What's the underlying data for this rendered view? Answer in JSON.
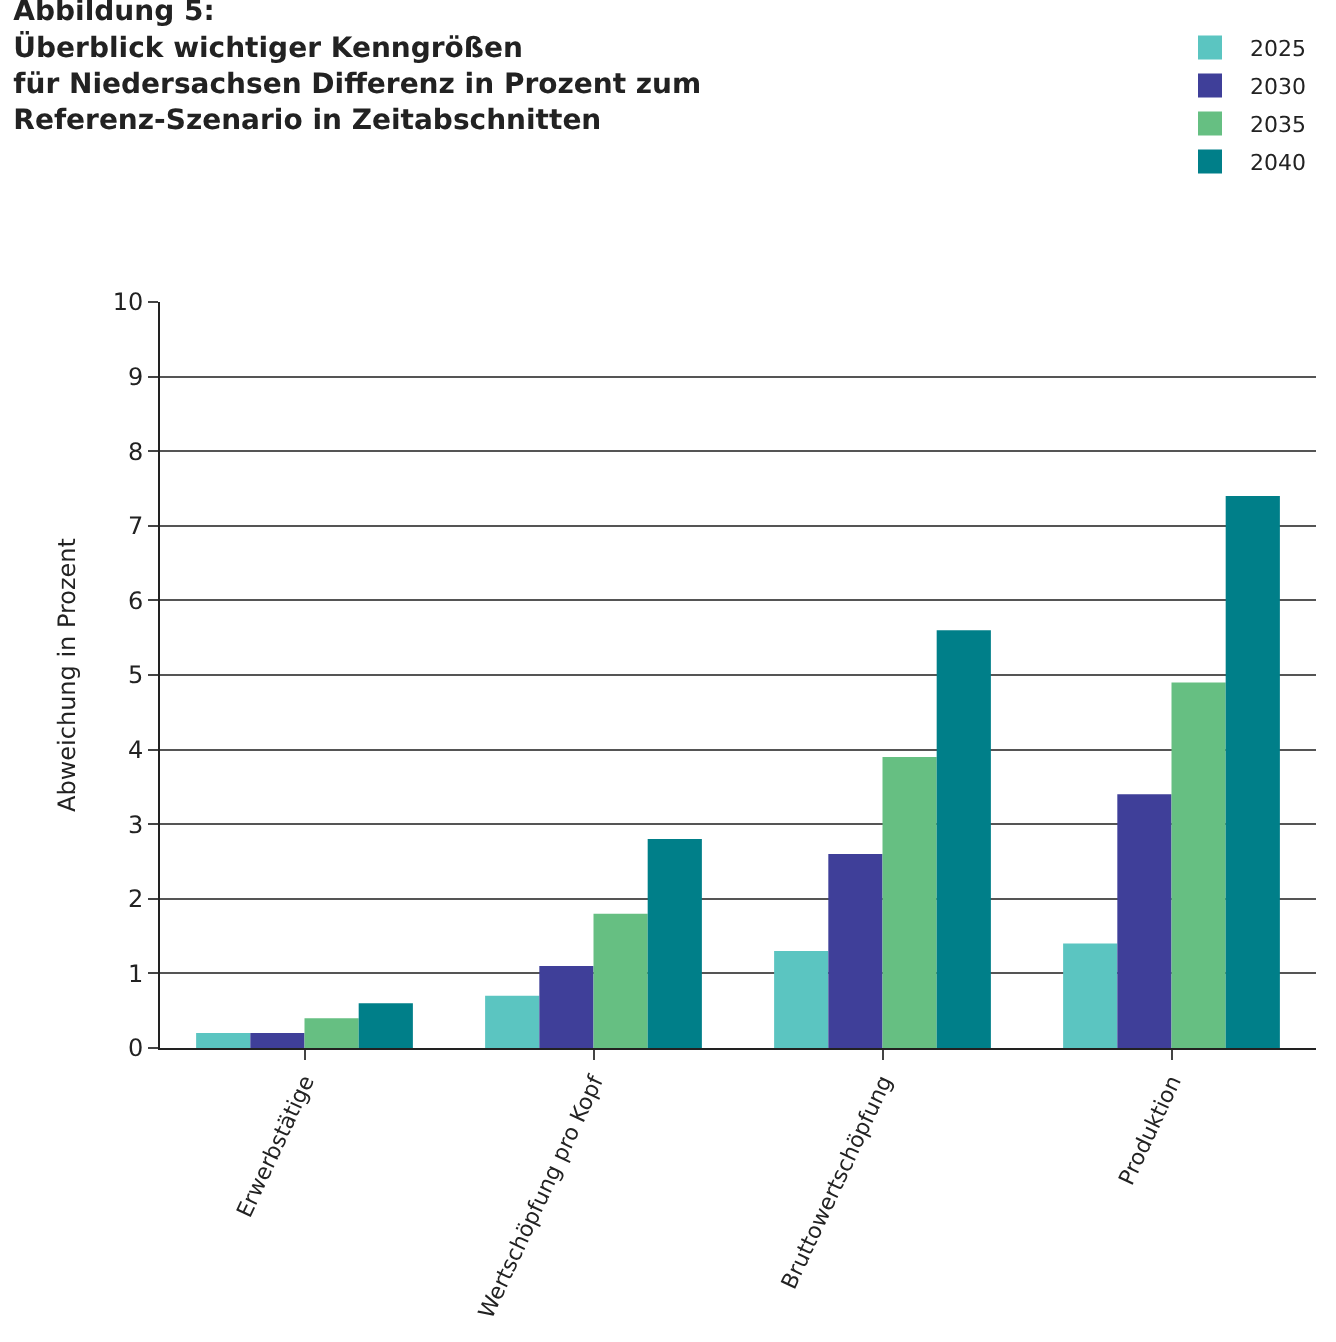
{
  "chart_data": {
    "type": "bar",
    "title": "Abbildung 5:\nÜberblick wichtiger Kenngrößen\nfür Niedersachsen Differenz in Prozent zum\nReferenz-Szenario in Zeitabschnitten",
    "ylabel": "Abweichung in Prozent",
    "categories": [
      "Erwerbstätige",
      "Wertschöpfung pro Kopf",
      "Bruttowertschöpfung",
      "Produktion"
    ],
    "series": [
      {
        "name": "2025",
        "color": "#5bc5c1",
        "values": [
          0.2,
          0.7,
          1.3,
          1.4
        ]
      },
      {
        "name": "2030",
        "color": "#3f3f99",
        "values": [
          0.2,
          1.1,
          2.6,
          3.4
        ]
      },
      {
        "name": "2035",
        "color": "#66bf82",
        "values": [
          0.4,
          1.8,
          3.9,
          4.9
        ]
      },
      {
        "name": "2040",
        "color": "#007f89",
        "values": [
          0.6,
          2.8,
          5.6,
          7.4
        ]
      }
    ],
    "ylim": [
      0,
      10
    ],
    "yticks": [
      0,
      1,
      2,
      3,
      4,
      5,
      6,
      7,
      8,
      9,
      10
    ],
    "grid": "y",
    "legend": "top right"
  }
}
